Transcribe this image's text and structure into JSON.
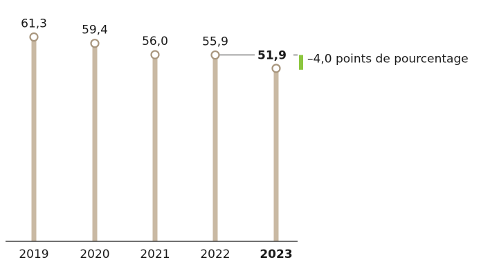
{
  "chart_data": {
    "type": "bar",
    "categories": [
      "2019",
      "2020",
      "2021",
      "2022",
      "2023"
    ],
    "values": [
      61.3,
      59.4,
      56.0,
      55.9,
      51.9
    ],
    "value_labels": [
      "61,3",
      "59,4",
      "56,0",
      "55,9",
      "51,9"
    ],
    "highlight_index": 4,
    "change_annotation": "–4,0 points de pourcentage",
    "title": "",
    "xlabel": "",
    "ylabel": "",
    "grid": false,
    "colors": {
      "stem": "#c9b9a3",
      "marker_stroke": "#a8967e",
      "accent": "#8cc63f",
      "axis": "#1a1a1a",
      "connector": "#1a1a1a"
    }
  }
}
